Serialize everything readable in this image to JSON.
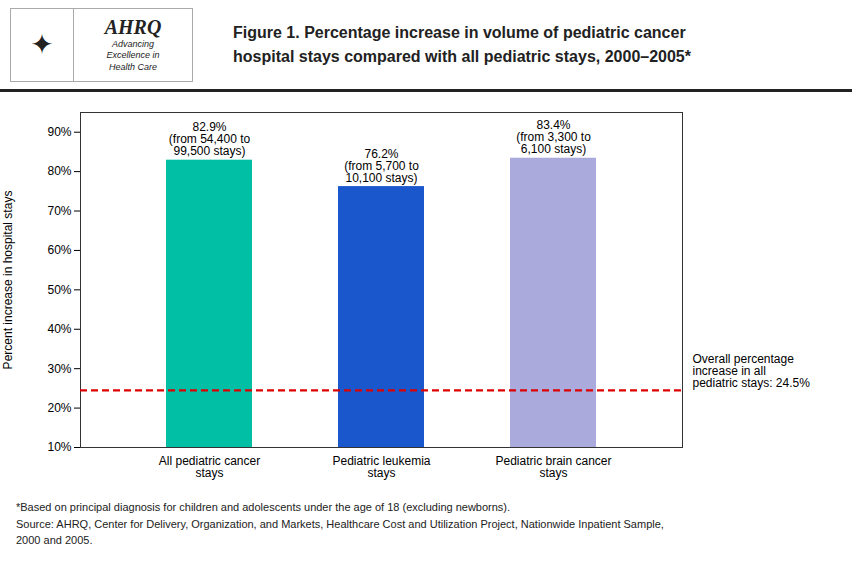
{
  "chart_data": {
    "type": "bar",
    "title": "Figure 1. Percentage increase in volume of pediatric cancer\nhospital stays compared with all pediatric stays, 2000–2005*",
    "categories": [
      "All pediatric cancer\nstays",
      "Pediatric leukemia\nstays",
      "Pediatric brain cancer\nstays"
    ],
    "values": [
      82.9,
      76.2,
      83.4
    ],
    "colors": [
      "#00BFA5",
      "#1A56CC",
      "#AAAADD"
    ],
    "data_labels": true,
    "value_labels": [
      "82.9%\n(from 54,400 to\n99,500 stays)",
      "76.2%\n(from 5,700 to\n10,100 stays)",
      "83.4%\n(from 3,300 to\n6,100 stays)"
    ],
    "ylabel": "Percent increase in hospital stays",
    "ylim": [
      10,
      95
    ],
    "yticks": [
      {
        "value": 10,
        "label": "10%"
      },
      {
        "value": 20,
        "label": "20%"
      },
      {
        "value": 30,
        "label": "30%"
      },
      {
        "value": 40,
        "label": "40%"
      },
      {
        "value": 50,
        "label": "50%"
      },
      {
        "value": 60,
        "label": "60%"
      },
      {
        "value": 70,
        "label": "70%"
      },
      {
        "value": 80,
        "label": "80%"
      },
      {
        "value": 90,
        "label": "90%"
      }
    ],
    "grid": false,
    "reference_lines": [
      {
        "y": 24.5,
        "label": "Overall percentage\nincrease in all\npediatric stays: 24.5%",
        "color": "#DD0000",
        "line_style": "dashed"
      }
    ],
    "annotations": [
      "✦",
      "AHRQ",
      "Advancing\nExcellence in\nHealth Care"
    ],
    "footnotes": [
      "*Based on principal diagnosis for children and adolescents under the age of 18 (excluding newborns).",
      "Source:  AHRQ, Center for Delivery, Organization, and Markets, Healthcare Cost and Utilization Project, Nationwide Inpatient Sample,",
      "2000 and 2005."
    ]
  }
}
